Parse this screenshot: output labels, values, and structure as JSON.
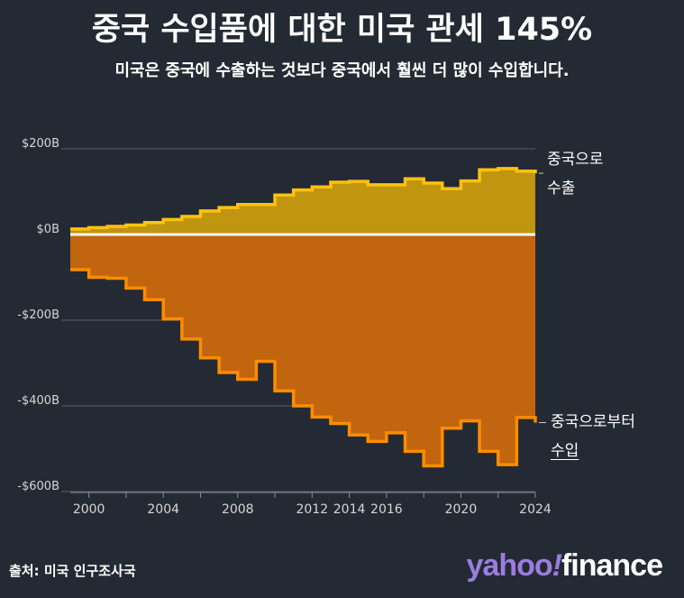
{
  "header": {
    "title": "중국 수입품에 대한 미국 관세 145%",
    "subtitle": "미국은 중국에 수출하는 것보다 중국에서 훨씬 더 많이 수입합니다."
  },
  "footer": {
    "source": "출처: 미국 인구조사국",
    "logo_yahoo": "yahoo",
    "logo_bang": "!",
    "logo_finance": "finance"
  },
  "annotations": {
    "exports_line1": "중국으로",
    "exports_line2": "수출",
    "imports_line1": "중국으로부터",
    "imports_line2": "수입"
  },
  "colors": {
    "background": "#242a33",
    "exports_fill": "#c0950f",
    "exports_line": "#ffc20e",
    "imports_fill": "#c1650f",
    "imports_line": "#ff8c00",
    "zero_line": "#ffffff",
    "grid": "#5a5f66"
  },
  "chart_data": {
    "type": "area",
    "title": "",
    "xlabel": "",
    "ylabel": "",
    "ylim": [
      -600,
      200
    ],
    "xlim": [
      1999,
      2024
    ],
    "yticks": [
      200,
      0,
      -200,
      -400,
      -600
    ],
    "ytick_labels": [
      "$200B",
      "$0B",
      "-$200B",
      "-$400B",
      "-$600B"
    ],
    "xticks": [
      2000,
      2004,
      2008,
      2012,
      2014,
      2016,
      2020,
      2024
    ],
    "grid": true,
    "x": [
      1999,
      2000,
      2001,
      2002,
      2003,
      2004,
      2005,
      2006,
      2007,
      2008,
      2009,
      2010,
      2011,
      2012,
      2013,
      2014,
      2015,
      2016,
      2017,
      2018,
      2019,
      2020,
      2021,
      2022,
      2023,
      2024
    ],
    "series": [
      {
        "name": "중국으로 수출",
        "values": [
          13,
          16,
          19,
          22,
          28,
          35,
          42,
          55,
          63,
          70,
          70,
          92,
          104,
          111,
          122,
          124,
          116,
          116,
          130,
          120,
          107,
          125,
          151,
          154,
          148,
          143
        ]
      },
      {
        "name": "중국으로부터 수입",
        "values": [
          -82,
          -100,
          -102,
          -125,
          -152,
          -197,
          -244,
          -288,
          -322,
          -338,
          -296,
          -365,
          -400,
          -426,
          -441,
          -468,
          -483,
          -463,
          -506,
          -540,
          -452,
          -435,
          -506,
          -537,
          -427,
          -439
        ]
      }
    ]
  }
}
